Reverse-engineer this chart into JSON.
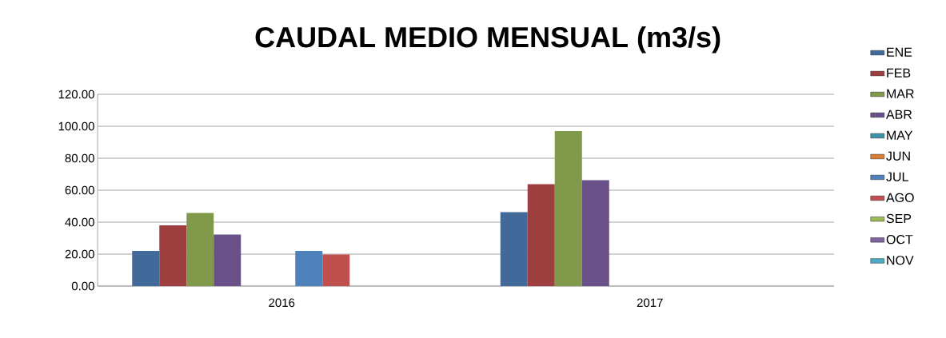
{
  "chart_data": {
    "type": "bar",
    "title": "CAUDAL MEDIO MENSUAL (m3/s)",
    "categories": [
      "2016",
      "2017"
    ],
    "series": [
      {
        "name": "ENE",
        "color": "#416a9b",
        "values": [
          22,
          46.3
        ]
      },
      {
        "name": "FEB",
        "color": "#9d3f3e",
        "values": [
          38,
          63.7
        ]
      },
      {
        "name": "MAR",
        "color": "#80994a",
        "values": [
          45.8,
          97
        ]
      },
      {
        "name": "ABR",
        "color": "#6a5089",
        "values": [
          32.3,
          66.2
        ]
      },
      {
        "name": "MAY",
        "color": "#3d93a7",
        "values": [
          null,
          null
        ]
      },
      {
        "name": "JUN",
        "color": "#d97f35",
        "values": [
          null,
          null
        ]
      },
      {
        "name": "JUL",
        "color": "#4f82bd",
        "values": [
          22,
          null
        ]
      },
      {
        "name": "AGO",
        "color": "#c0504d",
        "values": [
          19.7,
          null
        ]
      },
      {
        "name": "SEP",
        "color": "#9bbb59",
        "values": [
          null,
          null
        ]
      },
      {
        "name": "OCT",
        "color": "#8064a2",
        "values": [
          null,
          null
        ]
      },
      {
        "name": "NOV",
        "color": "#4bacc6",
        "values": [
          null,
          null
        ]
      }
    ],
    "ylim": [
      0,
      120
    ],
    "yticks": [
      {
        "value": 0,
        "label": "0.00"
      },
      {
        "value": 20,
        "label": "20.00"
      },
      {
        "value": 40,
        "label": "40.00"
      },
      {
        "value": 60,
        "label": "60.00"
      },
      {
        "value": 80,
        "label": "80.00"
      },
      {
        "value": 100,
        "label": "100.00"
      },
      {
        "value": 120,
        "label": "120.00"
      }
    ],
    "grid": "y",
    "legend": "right"
  }
}
